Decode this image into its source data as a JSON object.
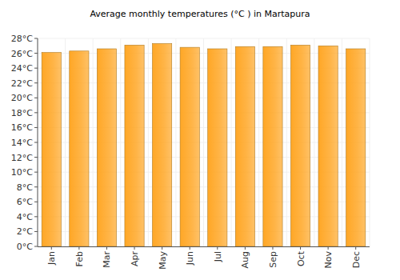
{
  "chart_data": {
    "type": "bar",
    "title": "Average monthly temperatures (°C ) in Martapura",
    "categories": [
      "Jan",
      "Feb",
      "Mar",
      "Apr",
      "May",
      "Jun",
      "Jul",
      "Aug",
      "Sep",
      "Oct",
      "Nov",
      "Dec"
    ],
    "values": [
      26.1,
      26.3,
      26.6,
      27.1,
      27.3,
      26.8,
      26.6,
      26.9,
      26.9,
      27.1,
      27.0,
      26.6
    ],
    "color": "#ffa726",
    "ylim": [
      0,
      28
    ],
    "yticks": [
      {
        "value": 0,
        "label": "0°C"
      },
      {
        "value": 2,
        "label": "2°C"
      },
      {
        "value": 4,
        "label": "4°C"
      },
      {
        "value": 6,
        "label": "6°C"
      },
      {
        "value": 8,
        "label": "8°C"
      },
      {
        "value": 10,
        "label": "10°C"
      },
      {
        "value": 12,
        "label": "12°C"
      },
      {
        "value": 14,
        "label": "14°C"
      },
      {
        "value": 16,
        "label": "16°C"
      },
      {
        "value": 18,
        "label": "18°C"
      },
      {
        "value": 20,
        "label": "20°C"
      },
      {
        "value": 22,
        "label": "22°C"
      },
      {
        "value": 24,
        "label": "24°C"
      },
      {
        "value": 26,
        "label": "26°C"
      },
      {
        "value": 28,
        "label": "28°C"
      }
    ],
    "grid": true
  }
}
